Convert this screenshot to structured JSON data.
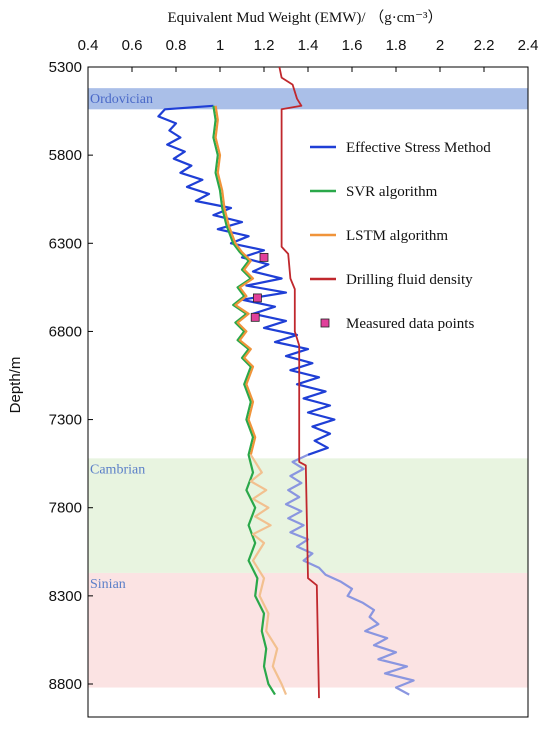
{
  "chart_data": {
    "type": "line",
    "title": "Equivalent Mud Weight (EMW)/ （g·cm⁻³）",
    "xlabel": "Equivalent Mud Weight (EMW)/ （g·cm⁻³）",
    "ylabel": "Depth/m",
    "x_axis_position": "top",
    "y_inverted": true,
    "xlim": [
      0.4,
      2.4
    ],
    "ylim": [
      5300,
      9000
    ],
    "x_ticks": [
      0.4,
      0.6,
      0.8,
      1,
      1.2,
      1.4,
      1.6,
      1.8,
      2,
      2.2,
      2.4
    ],
    "x_tick_labels": [
      "0.4",
      "0.6",
      "0.8",
      "1",
      "1.2",
      "1.4",
      "1.6",
      "1.8",
      "2",
      "2.2",
      "2.4"
    ],
    "y_ticks": [
      5300,
      5800,
      6300,
      6800,
      7300,
      7800,
      8300,
      8800
    ],
    "y_tick_labels": [
      "5300",
      "5800",
      "6300",
      "6800",
      "7300",
      "7800",
      "8300",
      "8800"
    ],
    "grid": false,
    "legend_position": "right",
    "bands": [
      {
        "label": "Ordovician",
        "from": 5420,
        "to": 5540,
        "color": "#aabfe8"
      },
      {
        "label": "Cambrian",
        "from": 7520,
        "to": 8170,
        "color": "#e8f4e0"
      },
      {
        "label": "Sinian",
        "from": 8170,
        "to": 8820,
        "color": "#fbe3e3"
      }
    ],
    "series": [
      {
        "name": "Effective Stress Method",
        "color": "#1f3fd6",
        "color_lower": "#8a96e0",
        "points": [
          [
            0.97,
            5520
          ],
          [
            0.75,
            5540
          ],
          [
            0.72,
            5580
          ],
          [
            0.8,
            5620
          ],
          [
            0.77,
            5660
          ],
          [
            0.82,
            5700
          ],
          [
            0.76,
            5740
          ],
          [
            0.84,
            5780
          ],
          [
            0.79,
            5820
          ],
          [
            0.87,
            5860
          ],
          [
            0.82,
            5900
          ],
          [
            0.92,
            5940
          ],
          [
            0.85,
            5980
          ],
          [
            0.95,
            6020
          ],
          [
            0.89,
            6060
          ],
          [
            1.05,
            6100
          ],
          [
            0.97,
            6140
          ],
          [
            1.1,
            6180
          ],
          [
            0.99,
            6220
          ],
          [
            1.13,
            6260
          ],
          [
            1.05,
            6300
          ],
          [
            1.2,
            6340
          ],
          [
            1.1,
            6380
          ],
          [
            1.22,
            6420
          ],
          [
            1.15,
            6460
          ],
          [
            1.28,
            6500
          ],
          [
            1.12,
            6540
          ],
          [
            1.3,
            6580
          ],
          [
            1.1,
            6620
          ],
          [
            1.25,
            6660
          ],
          [
            1.15,
            6700
          ],
          [
            1.3,
            6740
          ],
          [
            1.2,
            6780
          ],
          [
            1.35,
            6820
          ],
          [
            1.25,
            6860
          ],
          [
            1.4,
            6900
          ],
          [
            1.3,
            6940
          ],
          [
            1.42,
            6980
          ],
          [
            1.32,
            7020
          ],
          [
            1.45,
            7060
          ],
          [
            1.35,
            7100
          ],
          [
            1.48,
            7140
          ],
          [
            1.38,
            7180
          ],
          [
            1.5,
            7220
          ],
          [
            1.4,
            7260
          ],
          [
            1.52,
            7300
          ],
          [
            1.42,
            7340
          ],
          [
            1.5,
            7380
          ],
          [
            1.43,
            7420
          ],
          [
            1.49,
            7460
          ],
          [
            1.4,
            7500
          ],
          [
            1.33,
            7540
          ],
          [
            1.38,
            7580
          ],
          [
            1.32,
            7620
          ],
          [
            1.37,
            7660
          ],
          [
            1.31,
            7700
          ],
          [
            1.36,
            7740
          ],
          [
            1.3,
            7780
          ],
          [
            1.37,
            7820
          ],
          [
            1.31,
            7860
          ],
          [
            1.38,
            7900
          ],
          [
            1.32,
            7940
          ],
          [
            1.4,
            7980
          ],
          [
            1.35,
            8020
          ],
          [
            1.42,
            8060
          ],
          [
            1.38,
            8100
          ],
          [
            1.45,
            8140
          ],
          [
            1.48,
            8180
          ],
          [
            1.55,
            8220
          ],
          [
            1.6,
            8260
          ],
          [
            1.58,
            8300
          ],
          [
            1.65,
            8340
          ],
          [
            1.7,
            8380
          ],
          [
            1.68,
            8420
          ],
          [
            1.72,
            8460
          ],
          [
            1.66,
            8500
          ],
          [
            1.76,
            8540
          ],
          [
            1.7,
            8580
          ],
          [
            1.8,
            8620
          ],
          [
            1.72,
            8660
          ],
          [
            1.85,
            8700
          ],
          [
            1.75,
            8740
          ],
          [
            1.88,
            8780
          ],
          [
            1.8,
            8820
          ],
          [
            1.86,
            8860
          ]
        ]
      },
      {
        "name": "SVR algorithm",
        "color": "#2aa84a",
        "points": [
          [
            0.97,
            5520
          ],
          [
            0.98,
            5600
          ],
          [
            0.97,
            5700
          ],
          [
            0.99,
            5800
          ],
          [
            0.98,
            5900
          ],
          [
            1.0,
            6000
          ],
          [
            1.01,
            6100
          ],
          [
            1.03,
            6200
          ],
          [
            1.06,
            6300
          ],
          [
            1.09,
            6350
          ],
          [
            1.13,
            6400
          ],
          [
            1.1,
            6450
          ],
          [
            1.14,
            6500
          ],
          [
            1.08,
            6550
          ],
          [
            1.11,
            6600
          ],
          [
            1.06,
            6650
          ],
          [
            1.12,
            6700
          ],
          [
            1.07,
            6750
          ],
          [
            1.11,
            6800
          ],
          [
            1.08,
            6850
          ],
          [
            1.13,
            6900
          ],
          [
            1.1,
            6950
          ],
          [
            1.14,
            7000
          ],
          [
            1.11,
            7100
          ],
          [
            1.14,
            7200
          ],
          [
            1.12,
            7300
          ],
          [
            1.15,
            7400
          ],
          [
            1.13,
            7500
          ],
          [
            1.15,
            7600
          ],
          [
            1.12,
            7700
          ],
          [
            1.16,
            7800
          ],
          [
            1.13,
            7900
          ],
          [
            1.16,
            8000
          ],
          [
            1.13,
            8100
          ],
          [
            1.17,
            8200
          ],
          [
            1.16,
            8300
          ],
          [
            1.2,
            8400
          ],
          [
            1.19,
            8500
          ],
          [
            1.21,
            8600
          ],
          [
            1.2,
            8700
          ],
          [
            1.22,
            8800
          ],
          [
            1.25,
            8860
          ]
        ]
      },
      {
        "name": "LSTM algorithm",
        "color": "#f0943a",
        "color_lower": "#f2c08f",
        "points": [
          [
            0.98,
            5520
          ],
          [
            0.99,
            5600
          ],
          [
            0.98,
            5700
          ],
          [
            1.0,
            5800
          ],
          [
            0.99,
            5900
          ],
          [
            1.01,
            6000
          ],
          [
            1.02,
            6100
          ],
          [
            1.04,
            6200
          ],
          [
            1.07,
            6300
          ],
          [
            1.1,
            6350
          ],
          [
            1.14,
            6400
          ],
          [
            1.11,
            6450
          ],
          [
            1.15,
            6500
          ],
          [
            1.09,
            6550
          ],
          [
            1.12,
            6600
          ],
          [
            1.07,
            6650
          ],
          [
            1.13,
            6700
          ],
          [
            1.08,
            6750
          ],
          [
            1.12,
            6800
          ],
          [
            1.09,
            6850
          ],
          [
            1.14,
            6900
          ],
          [
            1.11,
            6950
          ],
          [
            1.15,
            7000
          ],
          [
            1.12,
            7100
          ],
          [
            1.15,
            7200
          ],
          [
            1.13,
            7300
          ],
          [
            1.16,
            7400
          ],
          [
            1.14,
            7500
          ],
          [
            1.19,
            7600
          ],
          [
            1.14,
            7650
          ],
          [
            1.21,
            7700
          ],
          [
            1.15,
            7750
          ],
          [
            1.22,
            7800
          ],
          [
            1.16,
            7850
          ],
          [
            1.23,
            7900
          ],
          [
            1.15,
            7950
          ],
          [
            1.2,
            8000
          ],
          [
            1.15,
            8100
          ],
          [
            1.2,
            8200
          ],
          [
            1.18,
            8300
          ],
          [
            1.22,
            8400
          ],
          [
            1.21,
            8500
          ],
          [
            1.26,
            8600
          ],
          [
            1.24,
            8700
          ],
          [
            1.28,
            8800
          ],
          [
            1.3,
            8860
          ]
        ]
      },
      {
        "name": "Drilling fluid density",
        "color": "#c0282d",
        "points": [
          [
            1.27,
            5300
          ],
          [
            1.28,
            5360
          ],
          [
            1.33,
            5400
          ],
          [
            1.34,
            5440
          ],
          [
            1.35,
            5480
          ],
          [
            1.37,
            5520
          ],
          [
            1.28,
            5540
          ],
          [
            1.28,
            6320
          ],
          [
            1.31,
            6360
          ],
          [
            1.32,
            6500
          ],
          [
            1.34,
            6560
          ],
          [
            1.34,
            6800
          ],
          [
            1.36,
            6880
          ],
          [
            1.36,
            7540
          ],
          [
            1.39,
            7560
          ],
          [
            1.4,
            8200
          ],
          [
            1.44,
            8240
          ],
          [
            1.45,
            8880
          ]
        ]
      },
      {
        "name": "Measured data points",
        "color": "#e0409a",
        "marker": "square",
        "points": [
          [
            1.2,
            6380
          ],
          [
            1.17,
            6610
          ],
          [
            1.16,
            6720
          ]
        ]
      }
    ]
  }
}
